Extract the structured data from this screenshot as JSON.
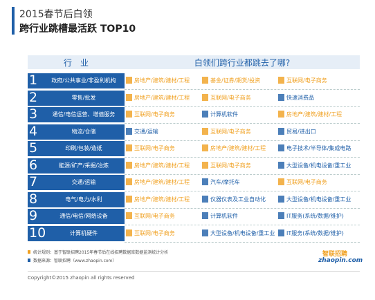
{
  "header": {
    "title": "2015春节后白领",
    "subtitle": "跨行业跳槽最活跃 TOP10"
  },
  "table": {
    "industry_header": "行　业",
    "destination_header": "白领们跨行业都跳去了哪?",
    "rows": [
      {
        "rank": "1",
        "industry": "政府/公共事业/非盈利机构",
        "destinations": [
          {
            "label": "房地产/建筑/建材/工程",
            "color": "#f0a020"
          },
          {
            "label": "基金/证券/期货/投资",
            "color": "#f0a020"
          },
          {
            "label": "互联网/电子商务",
            "color": "#f0a020"
          }
        ]
      },
      {
        "rank": "2",
        "industry": "零售/批发",
        "destinations": [
          {
            "label": "房地产/建筑/建材/工程",
            "color": "#f0a020"
          },
          {
            "label": "互联网/电子商务",
            "color": "#f0a020"
          },
          {
            "label": "快速消费品",
            "color": "#1f5fa8"
          }
        ]
      },
      {
        "rank": "3",
        "industry": "通信/电信运营、增值服务",
        "destinations": [
          {
            "label": "互联网/电子商务",
            "color": "#f0a020"
          },
          {
            "label": "计算机软件",
            "color": "#1f5fa8"
          },
          {
            "label": "房地产/建筑/建材/工程",
            "color": "#f0a020"
          }
        ]
      },
      {
        "rank": "4",
        "industry": "物流/仓储",
        "destinations": [
          {
            "label": "交通/运输",
            "color": "#1f5fa8"
          },
          {
            "label": "互联网/电子商务",
            "color": "#f0a020"
          },
          {
            "label": "贸易/进出口",
            "color": "#1f5fa8"
          }
        ]
      },
      {
        "rank": "5",
        "industry": "印刷/包装/造纸",
        "destinations": [
          {
            "label": "互联网/电子商务",
            "color": "#f0a020"
          },
          {
            "label": "房地产/建筑/建材/工程",
            "color": "#f0a020"
          },
          {
            "label": "电子技术/半导体/集成电路",
            "color": "#1f5fa8"
          }
        ]
      },
      {
        "rank": "6",
        "industry": "能源/矿产/采掘/冶炼",
        "destinations": [
          {
            "label": "房地产/建筑/建材/工程",
            "color": "#f0a020"
          },
          {
            "label": "互联网/电子商务",
            "color": "#f0a020"
          },
          {
            "label": "大型设备/机电设备/重工业",
            "color": "#1f5fa8"
          }
        ]
      },
      {
        "rank": "7",
        "industry": "交通/运输",
        "destinations": [
          {
            "label": "房地产/建筑/建材/工程",
            "color": "#f0a020"
          },
          {
            "label": "汽车/摩托车",
            "color": "#1f5fa8"
          },
          {
            "label": "互联网/电子商务",
            "color": "#f0a020"
          }
        ]
      },
      {
        "rank": "8",
        "industry": "电气/电力/水利",
        "destinations": [
          {
            "label": "房地产/建筑/建材/工程",
            "color": "#f0a020"
          },
          {
            "label": "仪器仪表及工业自动化",
            "color": "#1f5fa8"
          },
          {
            "label": "大型设备/机电设备/重工业",
            "color": "#1f5fa8"
          }
        ]
      },
      {
        "rank": "9",
        "industry": "通信/电信/网络设备",
        "destinations": [
          {
            "label": "互联网/电子商务",
            "color": "#f0a020"
          },
          {
            "label": "计算机软件",
            "color": "#1f5fa8"
          },
          {
            "label": "IT服务(系统/数据/维护)",
            "color": "#1f5fa8"
          }
        ]
      },
      {
        "rank": "10",
        "industry": "计算机硬件",
        "destinations": [
          {
            "label": "互联网/电子商务",
            "color": "#f0a020"
          },
          {
            "label": "大型设备/机电设备/重工业",
            "color": "#1f5fa8"
          },
          {
            "label": "IT服务(系统/数据/维护)",
            "color": "#1f5fa8"
          }
        ]
      }
    ]
  },
  "footer": {
    "notes": [
      "统计规则：基于智联招聘2015年春节后在线招聘数据库数据监测统计分析",
      "数据来源：智联招聘（www.zhaopin.com）"
    ],
    "logo": "智联招聘",
    "logo_url": "zhaopin.com",
    "copyright": "Copyright©2015 zhaopin all rights reserved"
  }
}
